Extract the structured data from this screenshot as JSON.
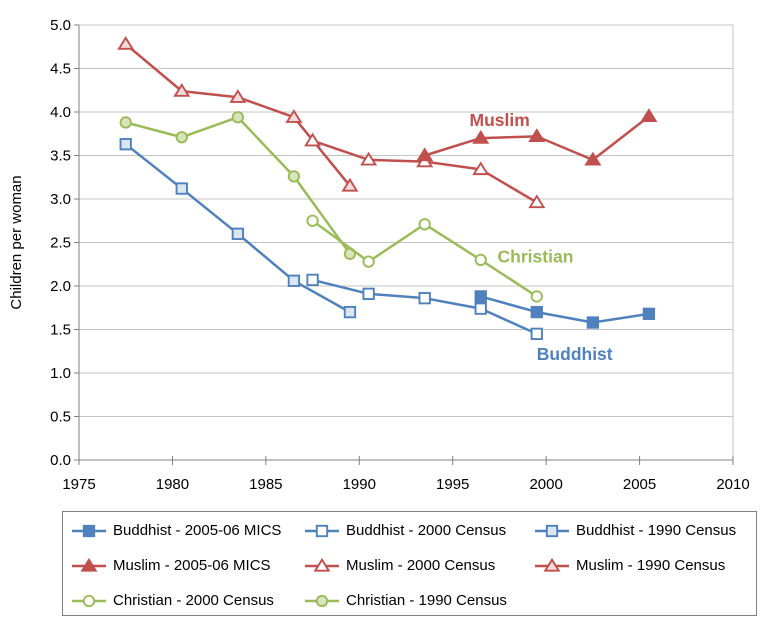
{
  "palette": {
    "buddhist": "#4F81BD",
    "muslim": "#C0504D",
    "christian": "#9BBB59",
    "buddhist_light": "#DCE6F1",
    "muslim_light": "#F2DBDB",
    "christian_light": "#D7E4BC",
    "open_fill": "#FFFFFF",
    "gridline": "#C4C4C4",
    "axis": "#808080",
    "legend_border": "#808080",
    "text": "#000000"
  },
  "chart_data": {
    "type": "line",
    "title": "",
    "xlabel": "",
    "ylabel": "Children per woman",
    "xlim": [
      1975,
      2010
    ],
    "ylim": [
      0,
      5
    ],
    "x_ticks": [
      1975,
      1980,
      1985,
      1990,
      1995,
      2000,
      2005,
      2010
    ],
    "y_ticks": [
      0,
      0.5,
      1,
      1.5,
      2,
      2.5,
      3,
      3.5,
      4,
      4.5,
      5
    ],
    "grid": "horizontal-major",
    "legend_position": "bottom",
    "series": [
      {
        "name": "Buddhist - 2005-06 MICS",
        "religion": "Buddhist",
        "source": "2005-06 MICS",
        "color": "#4F81BD",
        "marker": "square",
        "fill_style": "solid",
        "marker_fill": "#4F81BD",
        "x": [
          1996.5,
          1999.5,
          2002.5,
          2005.5
        ],
        "y": [
          1.88,
          1.7,
          1.58,
          1.68
        ]
      },
      {
        "name": "Buddhist - 2000 Census",
        "religion": "Buddhist",
        "source": "2000 Census",
        "color": "#4F81BD",
        "marker": "square",
        "fill_style": "open",
        "marker_fill": "#FFFFFF",
        "x": [
          1987.5,
          1990.5,
          1993.5,
          1996.5,
          1999.5
        ],
        "y": [
          2.07,
          1.91,
          1.86,
          1.74,
          1.45
        ]
      },
      {
        "name": "Buddhist - 1990 Census",
        "religion": "Buddhist",
        "source": "1990 Census",
        "color": "#4F81BD",
        "marker": "square",
        "fill_style": "light",
        "marker_fill": "#DCE6F1",
        "x": [
          1977.5,
          1980.5,
          1983.5,
          1986.5,
          1989.5
        ],
        "y": [
          3.63,
          3.12,
          2.6,
          2.06,
          1.7
        ]
      },
      {
        "name": "Muslim - 2005-06 MICS",
        "religion": "Muslim",
        "source": "2005-06 MICS",
        "color": "#C0504D",
        "marker": "triangle",
        "fill_style": "solid",
        "marker_fill": "#C0504D",
        "x": [
          1993.5,
          1996.5,
          1999.5,
          2002.5,
          2005.5
        ],
        "y": [
          3.5,
          3.7,
          3.72,
          3.45,
          3.95
        ]
      },
      {
        "name": "Muslim - 2000 Census",
        "religion": "Muslim",
        "source": "2000 Census",
        "color": "#C0504D",
        "marker": "triangle",
        "fill_style": "open",
        "marker_fill": "#FFFFFF",
        "x": [
          1987.5,
          1990.5,
          1993.5,
          1996.5,
          1999.5
        ],
        "y": [
          3.67,
          3.45,
          3.43,
          3.34,
          2.96
        ]
      },
      {
        "name": "Muslim - 1990 Census",
        "religion": "Muslim",
        "source": "1990 Census",
        "color": "#C0504D",
        "marker": "triangle",
        "fill_style": "light",
        "marker_fill": "#F2DBDB",
        "x": [
          1977.5,
          1980.5,
          1983.5,
          1986.5,
          1989.5
        ],
        "y": [
          4.78,
          4.24,
          4.17,
          3.94,
          3.15
        ]
      },
      {
        "name": "Christian - 2000 Census",
        "religion": "Christian",
        "source": "2000 Census",
        "color": "#9BBB59",
        "marker": "circle",
        "fill_style": "open",
        "marker_fill": "#FFFFFF",
        "x": [
          1987.5,
          1990.5,
          1993.5,
          1996.5,
          1999.5
        ],
        "y": [
          2.75,
          2.28,
          2.71,
          2.3,
          1.88
        ]
      },
      {
        "name": "Christian - 1990 Census",
        "religion": "Christian",
        "source": "1990 Census",
        "color": "#9BBB59",
        "marker": "circle",
        "fill_style": "light",
        "marker_fill": "#D7E4BC",
        "x": [
          1977.5,
          1980.5,
          1983.5,
          1986.5,
          1989.5
        ],
        "y": [
          3.88,
          3.71,
          3.94,
          3.26,
          2.37
        ]
      }
    ],
    "annotations": [
      {
        "text": "Muslim",
        "x": 1995.9,
        "y": 3.84,
        "color": "#C0504D"
      },
      {
        "text": "Christian",
        "x": 1997.4,
        "y": 2.27,
        "color": "#9BBB59"
      },
      {
        "text": "Buddhist",
        "x": 1999.5,
        "y": 1.15,
        "color": "#4F81BD"
      }
    ]
  }
}
